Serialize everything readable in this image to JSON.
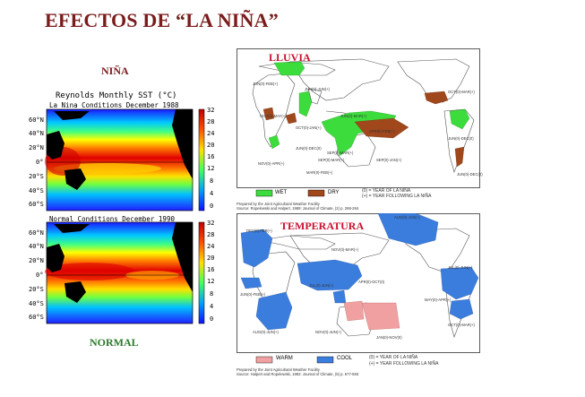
{
  "slide": {
    "title": "EFECTOS DE “LA NIÑA”",
    "label_nina": "NIÑA",
    "label_normal": "NORMAL"
  },
  "sst": {
    "title": "Reynolds Monthly SST  (°C)",
    "top_condition": "La Nina Conditions December 1988",
    "bottom_condition": "Normal Conditions December 1990",
    "lat_labels": [
      "60°N",
      "40°N",
      "20°N",
      "0°",
      "20°S",
      "40°S",
      "60°S"
    ],
    "colorbar_labels": [
      "32",
      "28",
      "24",
      "20",
      "16",
      "12",
      "8",
      "4",
      "0"
    ]
  },
  "rain_map": {
    "title": "LLUVIA",
    "legend_wet": "WET",
    "legend_dry": "DRY",
    "note_line1": "(0) = YEAR OF LA NIÑA",
    "note_line2": "(+) = YEAR FOLLOWING LA NIÑA",
    "source_line1": "Prepared by the Joint Agricultural Weather Facility",
    "source_line2": "Source: Ropelewski and Halpert, 1989: Journal of Climate, (2) p. 268-284",
    "regions": [
      "JUN(0)-FEB(+)",
      "JUN(0)-JUN(+)",
      "JUN(0)-MAR(+)",
      "NOV(0)-MAY(+)",
      "OCT(0)-JAN(+)",
      "NOV(0)-APR(+)",
      "JUN(0)-DEC(0)",
      "SEP(0)-MAR(+)",
      "SEP(0)-JAN(+)",
      "MAR(0)-FEB(+)",
      "SEP(0)-MAR(+)",
      "JUN(0)-DEC(0)",
      "APR(0)-FEB(+)",
      "OCT(0)-MAR(+)",
      "JUN(0)-DEC(0)"
    ]
  },
  "temp_map": {
    "title": "TEMPERATURA",
    "legend_warm": "WARM",
    "legend_cool": "COOL",
    "note_line1": "(0) = YEAR OF LA NIÑA",
    "note_line2": "(+) = YEAR FOLLOWING LA NIÑA",
    "source_line1": "Prepared by the Joint Agricultural Weather Facility",
    "source_line2": "Source: Halpert and Ropelewski, 1992: Journal of Climate, (5) p. 577-593",
    "regions": [
      "DEC(0)-FEB(+)",
      "NOV(0)-MAR(+)",
      "JUN(0)-FEB(+)",
      "JUL(0)-JUN(+)",
      "APR(0)-OCT(0)",
      "JUL(0)-JUN(+)",
      "MAY(0)-APR(+)",
      "JAN(0)-NOV(0)",
      "AUG(0)-JUN(+)",
      "NOV(0)-JUN(+)",
      "OCT(0)-MAR(+)",
      "AUG(0)-JAN(+)"
    ]
  },
  "colors": {
    "title_red": "#7a1c1c",
    "normal_green": "#2a7a2a",
    "wet": "#3ddc3d",
    "dry": "#a0471c",
    "warm": "#f0a0a0",
    "cool": "#3b7ddd",
    "map_title_red": "#c8102e"
  }
}
